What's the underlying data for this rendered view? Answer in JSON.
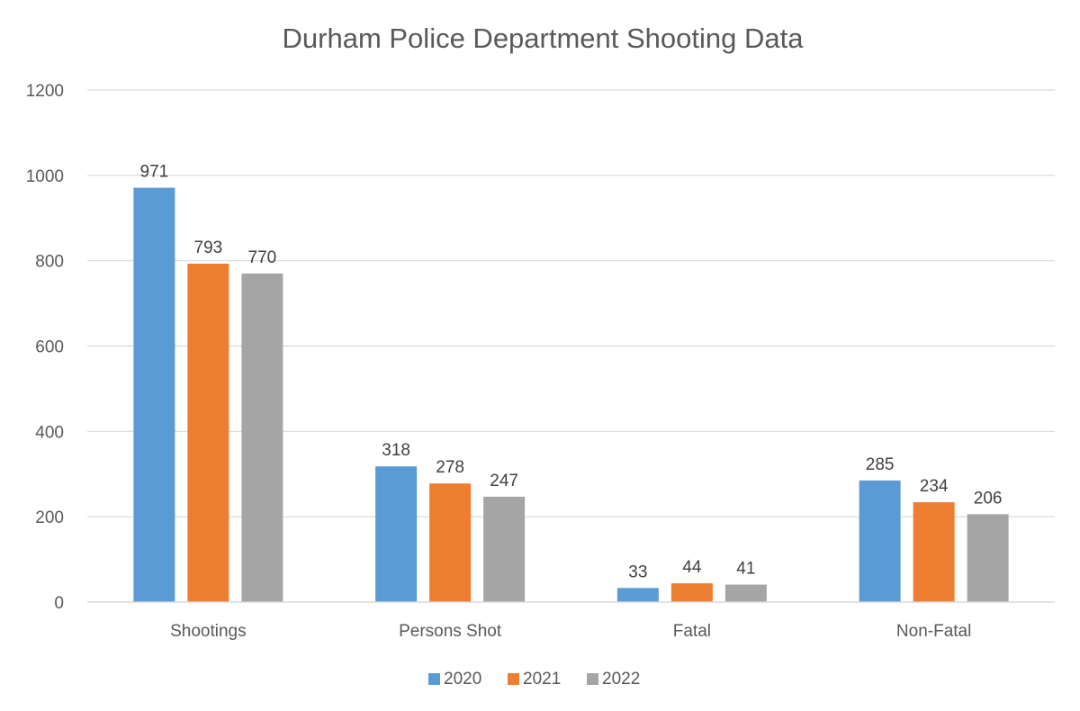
{
  "chart_data": {
    "type": "bar",
    "title": "Durham Police Department Shooting Data",
    "xlabel": "",
    "ylabel": "",
    "categories": [
      "Shootings",
      "Persons Shot",
      "Fatal",
      "Non-Fatal"
    ],
    "series": [
      {
        "name": "2020",
        "values": [
          971,
          318,
          33,
          285
        ],
        "color": "#5b9bd5"
      },
      {
        "name": "2021",
        "values": [
          793,
          278,
          44,
          234
        ],
        "color": "#ed7d31"
      },
      {
        "name": "2022",
        "values": [
          770,
          247,
          41,
          206
        ],
        "color": "#a5a5a5"
      }
    ],
    "ylim": [
      0,
      1200
    ],
    "yticks": [
      0,
      200,
      400,
      600,
      800,
      1000,
      1200
    ],
    "grid": true,
    "legend": "bottom-center",
    "data_labels": true
  }
}
